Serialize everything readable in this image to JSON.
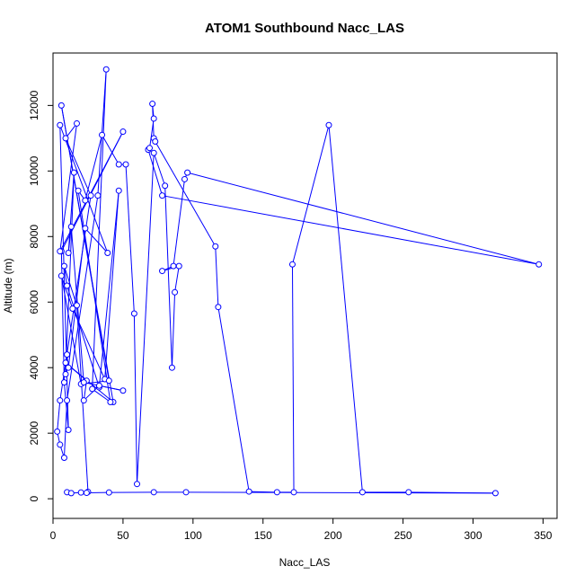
{
  "chart_data": {
    "type": "line",
    "title": "ATOM1 Southbound Nacc_LAS",
    "xlabel": "Nacc_LAS",
    "ylabel": "Altitude (m)",
    "xlim": [
      0,
      360
    ],
    "ylim": [
      -600,
      13600
    ],
    "x_ticks": [
      0,
      50,
      100,
      150,
      200,
      250,
      300,
      350
    ],
    "y_ticks": [
      0,
      2000,
      4000,
      6000,
      8000,
      10000,
      12000
    ],
    "grid": false,
    "legend": "none",
    "series": [
      {
        "color": "#0000ff",
        "marker": "open-circle",
        "points": [
          [
            10,
            200
          ],
          [
            13,
            170
          ],
          [
            20,
            190
          ],
          [
            25,
            210
          ],
          [
            17,
            5900
          ],
          [
            8,
            7100
          ],
          [
            10,
            6500
          ],
          [
            33,
            3400
          ],
          [
            47,
            9400
          ],
          [
            37,
            3650
          ],
          [
            14,
            5800
          ],
          [
            6,
            6800
          ],
          [
            20,
            3500
          ],
          [
            40,
            3600
          ],
          [
            6,
            12000
          ],
          [
            43,
            2950
          ],
          [
            9,
            4150
          ],
          [
            24,
            3600
          ],
          [
            22,
            3000
          ],
          [
            33,
            3450
          ],
          [
            50,
            3300
          ],
          [
            22,
            3550
          ],
          [
            13,
            8300
          ],
          [
            11,
            7500
          ],
          [
            15,
            9950
          ],
          [
            9,
            3800
          ],
          [
            10,
            4400
          ],
          [
            11,
            4000
          ],
          [
            23,
            8250
          ],
          [
            39,
            7500
          ],
          [
            5,
            11400
          ],
          [
            11,
            2100
          ],
          [
            8,
            3550
          ],
          [
            6,
            7550
          ],
          [
            50,
            11200
          ],
          [
            5,
            7550
          ],
          [
            17,
            11450
          ],
          [
            9,
            11000
          ],
          [
            27,
            9250
          ],
          [
            5,
            3000
          ],
          [
            3,
            2050
          ],
          [
            5,
            1650
          ],
          [
            8,
            1250
          ],
          [
            10,
            3000
          ],
          [
            32,
            9250
          ],
          [
            38,
            13100
          ],
          [
            28,
            3350
          ],
          [
            41,
            2950
          ],
          [
            18,
            9400
          ],
          [
            23,
            9100
          ],
          [
            35,
            11100
          ],
          [
            47,
            10200
          ],
          [
            52,
            10200
          ],
          [
            58,
            5650
          ],
          [
            60,
            450
          ],
          [
            72,
            10550
          ],
          [
            80,
            9550
          ],
          [
            85,
            4000
          ],
          [
            87,
            6300
          ],
          [
            90,
            7100
          ],
          [
            78,
            6950
          ],
          [
            86,
            7100
          ],
          [
            94,
            9750
          ],
          [
            96,
            9950
          ],
          [
            347,
            7150
          ],
          [
            78,
            9250
          ],
          [
            68,
            10650
          ],
          [
            69,
            10700
          ],
          [
            72,
            11600
          ],
          [
            71,
            12050
          ],
          [
            72,
            11000
          ],
          [
            73,
            10900
          ],
          [
            116,
            7700
          ],
          [
            118,
            5850
          ],
          [
            140,
            220
          ],
          [
            160,
            200
          ],
          [
            172,
            200
          ],
          [
            171,
            7150
          ],
          [
            197,
            11400
          ],
          [
            221,
            200
          ],
          [
            254,
            200
          ],
          [
            316,
            170
          ],
          [
            95,
            200
          ],
          [
            72,
            200
          ],
          [
            40,
            190
          ],
          [
            24,
            180
          ]
        ]
      }
    ]
  }
}
